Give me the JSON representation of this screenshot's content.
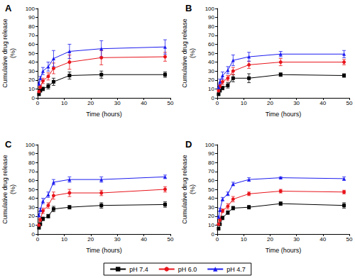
{
  "chart_data": [
    {
      "type": "line",
      "title": "A",
      "x_label": "Time (hours)",
      "y_label": "Cumulative drug release\n(%)",
      "x": [
        0.5,
        1,
        2,
        4,
        6,
        12,
        24,
        48
      ],
      "xlim": [
        0,
        50
      ],
      "xticks": [
        0,
        10,
        20,
        30,
        40,
        50
      ],
      "ylim": [
        0,
        100
      ],
      "yticks": [
        0,
        10,
        20,
        30,
        40,
        50,
        60,
        70,
        80,
        90,
        100
      ],
      "grid": false,
      "legend": "bottom",
      "series": [
        {
          "name": "pH 7.4",
          "color": "#000000",
          "marker": "square",
          "values": [
            4,
            8,
            10,
            13,
            18,
            25,
            26,
            26
          ],
          "errors": [
            1,
            1,
            2,
            3,
            4,
            4,
            4,
            3
          ]
        },
        {
          "name": "pH 6.0",
          "color": "#e8141b",
          "marker": "circle",
          "values": [
            7,
            12,
            19,
            24,
            33,
            40,
            45,
            46
          ],
          "errors": [
            1,
            2,
            3,
            4,
            6,
            8,
            8,
            5
          ]
        },
        {
          "name": "pH 4.7",
          "color": "#1c1cf0",
          "marker": "triangle",
          "values": [
            16,
            22,
            30,
            35,
            44,
            52,
            55,
            57
          ],
          "errors": [
            2,
            2,
            4,
            5,
            9,
            8,
            9,
            8
          ]
        }
      ]
    },
    {
      "type": "line",
      "title": "B",
      "x_label": "Time (hours)",
      "y_label": "Cumulative drug release\n(%)",
      "x": [
        0.5,
        1,
        2,
        4,
        6,
        12,
        24,
        48
      ],
      "xlim": [
        0,
        50
      ],
      "xticks": [
        0,
        10,
        20,
        30,
        40,
        50
      ],
      "ylim": [
        0,
        100
      ],
      "yticks": [
        0,
        10,
        20,
        30,
        40,
        50,
        60,
        70,
        80,
        90,
        100
      ],
      "grid": false,
      "legend": "bottom",
      "series": [
        {
          "name": "pH 7.4",
          "color": "#000000",
          "marker": "square",
          "values": [
            4,
            8,
            11,
            14,
            22,
            22,
            26,
            25
          ],
          "errors": [
            1,
            1,
            2,
            3,
            4,
            5,
            2,
            2
          ]
        },
        {
          "name": "pH 6.0",
          "color": "#e8141b",
          "marker": "circle",
          "values": [
            8,
            13,
            18,
            22,
            30,
            37,
            40,
            40
          ],
          "errors": [
            1,
            2,
            3,
            3,
            4,
            4,
            4,
            3
          ]
        },
        {
          "name": "pH 4.7",
          "color": "#1c1cf0",
          "marker": "triangle",
          "values": [
            12,
            18,
            25,
            31,
            42,
            46,
            49,
            49
          ],
          "errors": [
            2,
            3,
            4,
            4,
            6,
            5,
            3,
            4
          ]
        }
      ]
    },
    {
      "type": "line",
      "title": "C",
      "x_label": "Time (hours)",
      "y_label": "Cumulative drug release\n(%)",
      "x": [
        0.5,
        1,
        2,
        4,
        6,
        12,
        24,
        48
      ],
      "xlim": [
        0,
        50
      ],
      "xticks": [
        0,
        10,
        20,
        30,
        40,
        50
      ],
      "ylim": [
        0,
        100
      ],
      "yticks": [
        0,
        10,
        20,
        30,
        40,
        50,
        60,
        70,
        80,
        90,
        100
      ],
      "grid": false,
      "legend": "bottom",
      "series": [
        {
          "name": "pH 7.4",
          "color": "#000000",
          "marker": "square",
          "values": [
            7,
            11,
            17,
            20,
            28,
            30,
            32,
            33
          ],
          "errors": [
            1,
            1,
            2,
            2,
            3,
            2,
            3,
            3
          ]
        },
        {
          "name": "pH 6.0",
          "color": "#e8141b",
          "marker": "circle",
          "values": [
            10,
            16,
            26,
            32,
            43,
            46,
            46,
            50
          ],
          "errors": [
            2,
            2,
            3,
            3,
            4,
            4,
            3,
            3
          ]
        },
        {
          "name": "pH 4.7",
          "color": "#1c1cf0",
          "marker": "triangle",
          "values": [
            21,
            27,
            37,
            44,
            58,
            61,
            61,
            64
          ],
          "errors": [
            2,
            2,
            3,
            3,
            3,
            3,
            3,
            2
          ]
        }
      ]
    },
    {
      "type": "line",
      "title": "D",
      "x_label": "Time (hours)",
      "y_label": "Cumulative drug release\n(%)",
      "x": [
        0.5,
        1,
        2,
        4,
        6,
        12,
        24,
        48
      ],
      "xlim": [
        0,
        50
      ],
      "xticks": [
        0,
        10,
        20,
        30,
        40,
        50
      ],
      "ylim": [
        0,
        100
      ],
      "yticks": [
        0,
        10,
        20,
        30,
        40,
        50,
        60,
        70,
        80,
        90,
        100
      ],
      "grid": false,
      "legend": "bottom",
      "series": [
        {
          "name": "pH 7.4",
          "color": "#000000",
          "marker": "square",
          "values": [
            6,
            11,
            18,
            24,
            29,
            30,
            34,
            32
          ],
          "errors": [
            1,
            1,
            2,
            2,
            2,
            2,
            2,
            3
          ]
        },
        {
          "name": "pH 6.0",
          "color": "#e8141b",
          "marker": "circle",
          "values": [
            11,
            16,
            26,
            31,
            39,
            45,
            48,
            47
          ],
          "errors": [
            1,
            2,
            2,
            3,
            3,
            2,
            2,
            2
          ]
        },
        {
          "name": "pH 4.7",
          "color": "#1c1cf0",
          "marker": "triangle",
          "values": [
            19,
            27,
            39,
            45,
            56,
            61,
            63,
            62
          ],
          "errors": [
            1,
            2,
            2,
            2,
            2,
            2,
            1,
            2
          ]
        }
      ]
    }
  ]
}
